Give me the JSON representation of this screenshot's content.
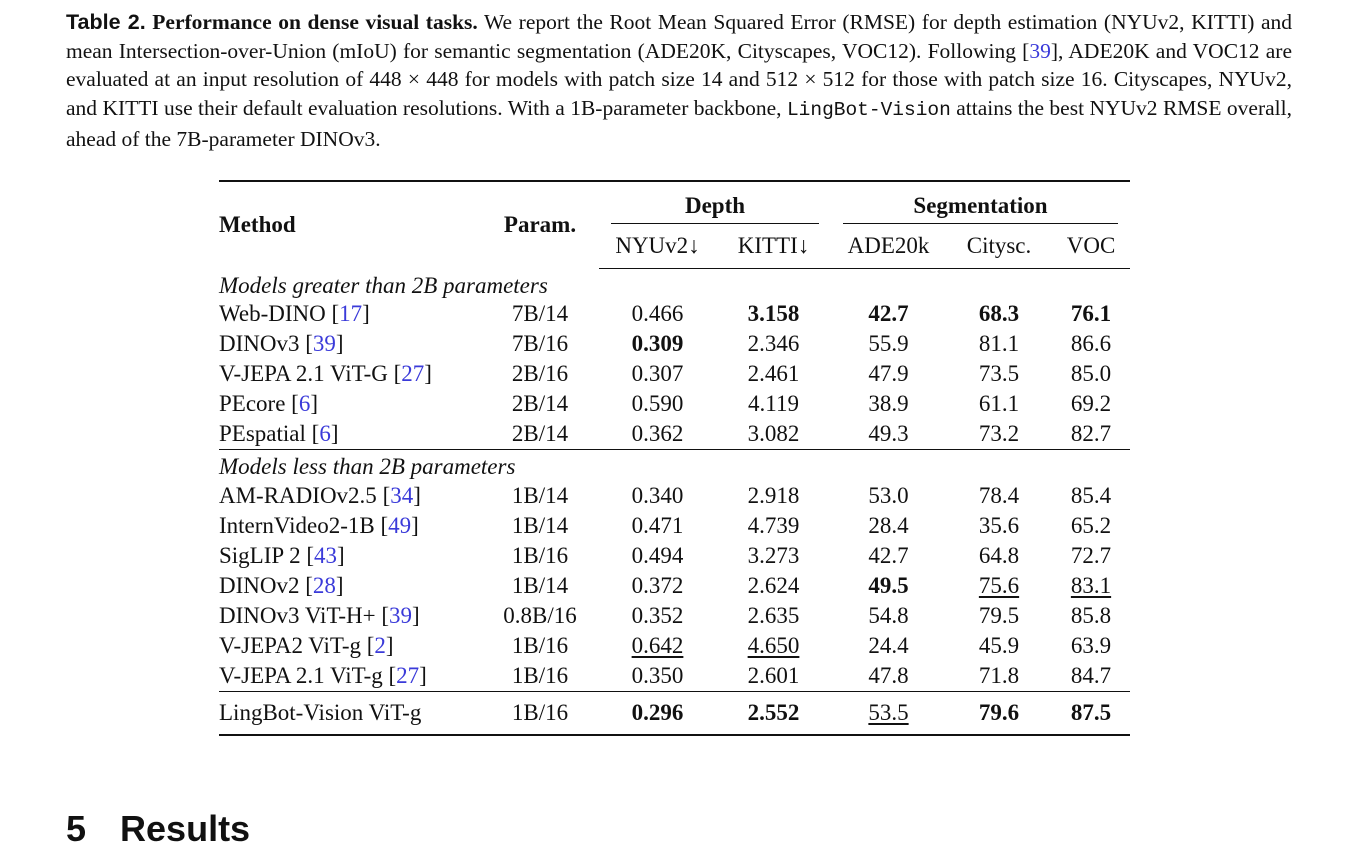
{
  "caption": {
    "label": "Table 2.",
    "title": "Performance on dense visual tasks.",
    "text_1": "We report the Root Mean Squared Error (RMSE) for depth estimation (NYUv2, KITTI) and mean Intersection-over-Union (mIoU) for semantic segmentation (ADE20K, Cityscapes, VOC12). Following [",
    "ref_1": "39",
    "text_2": "], ADE20K and VOC12 are evaluated at an input resolution of 448 × 448 for models with patch size 14 and 512 × 512 for those with patch size 16. Cityscapes, NYUv2, and KITTI use their default evaluation resolutions. With a 1B-parameter backbone, ",
    "model_name": "LingBot-Vision",
    "text_3": " attains the best NYUv2 RMSE overall, ahead of the 7B-parameter DINOv3."
  },
  "table": {
    "header": {
      "method": "Method",
      "param": "Param.",
      "group_depth": "Depth",
      "group_seg": "Segmentation",
      "cols": [
        "NYUv2↓",
        "KITTI↓",
        "ADE20k",
        "Citysc.",
        "VOC"
      ]
    },
    "sections": [
      {
        "title": "Models greater than 2B parameters",
        "rows": [
          {
            "name": "Web-DINO",
            "ref": "17",
            "param": "7B/14",
            "v": [
              "0.466",
              "3.158",
              "42.7",
              "68.3",
              "76.1"
            ]
          },
          {
            "name": "DINOv3",
            "ref": "39",
            "param": "7B/16",
            "v": [
              "0.309",
              "2.346",
              "55.9",
              "81.1",
              "86.6"
            ]
          },
          {
            "name": "V-JEPA 2.1 ViT-G",
            "ref": "27",
            "param": "2B/16",
            "v": [
              "0.307",
              "2.461",
              "47.9",
              "73.5",
              "85.0"
            ]
          },
          {
            "name": "PEcore",
            "ref": "6",
            "param": "2B/14",
            "v": [
              "0.590",
              "4.119",
              "38.9",
              "61.1",
              "69.2"
            ]
          },
          {
            "name": "PEspatial",
            "ref": "6",
            "param": "2B/14",
            "v": [
              "0.362",
              "3.082",
              "49.3",
              "73.2",
              "82.7"
            ]
          }
        ]
      },
      {
        "title": "Models less than 2B parameters",
        "rows": [
          {
            "name": "AM-RADIOv2.5",
            "ref": "34",
            "param": "1B/14",
            "v": [
              "0.340",
              "2.918",
              "53.0",
              "78.4",
              "85.4"
            ]
          },
          {
            "name": "InternVideo2-1B",
            "ref": "49",
            "param": "1B/14",
            "v": [
              "0.471",
              "4.739",
              "28.4",
              "35.6",
              "65.2"
            ]
          },
          {
            "name": "SigLIP 2",
            "ref": "43",
            "param": "1B/16",
            "v": [
              "0.494",
              "3.273",
              "42.7",
              "64.8",
              "72.7"
            ]
          },
          {
            "name": "DINOv2",
            "ref": "28",
            "param": "1B/14",
            "v": [
              "0.372",
              "2.624",
              "49.5",
              "75.6",
              "83.1"
            ]
          },
          {
            "name": "DINOv3 ViT-H+",
            "ref": "39",
            "param": "0.8B/16",
            "v": [
              "0.352",
              "2.635",
              "54.8",
              "79.5",
              "85.8"
            ]
          },
          {
            "name": "V-JEPA2 ViT-g",
            "ref": "2",
            "param": "1B/16",
            "v": [
              "0.642",
              "4.650",
              "24.4",
              "45.9",
              "63.9"
            ]
          },
          {
            "name": "V-JEPA 2.1 ViT-g",
            "ref": "27",
            "param": "1B/16",
            "v": [
              "0.350",
              "2.601",
              "47.8",
              "71.8",
              "84.7"
            ]
          }
        ]
      }
    ],
    "final": {
      "name": "LingBot-Vision ViT-g",
      "param": "1B/16",
      "v": [
        "0.296",
        "2.552",
        "53.5",
        "79.6",
        "87.5"
      ]
    }
  },
  "section_heading": {
    "number": "5",
    "title": "Results"
  }
}
